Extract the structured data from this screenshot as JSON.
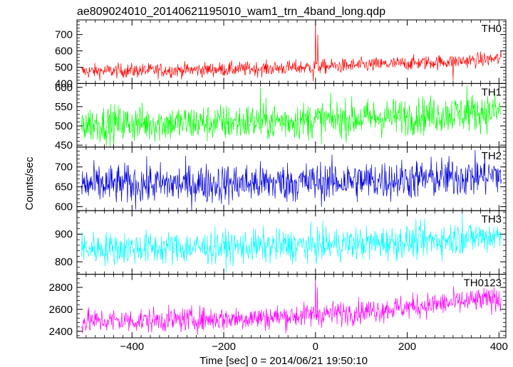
{
  "title": "ae809024010_20140621195010_wam1_trn_4band_long.qdp",
  "xlabel": "Time [sec] 0 = 2014/06/21 19:50:10",
  "ylabel": "Counts/sec",
  "chart_data": {
    "type": "line",
    "title": "ae809024010_20140621195010_wam1_trn_4band_long.qdp",
    "xlabel": "Time [sec] 0 = 2014/06/21 19:50:10",
    "ylabel": "Counts/sec",
    "xlim": [
      -520,
      415
    ],
    "xticks": [
      -400,
      -200,
      0,
      200,
      400
    ],
    "xtick_labels": [
      "−400",
      "−200",
      "0",
      "200",
      "400"
    ],
    "x_start": -510,
    "x_end": 405,
    "step": 1,
    "panels": [
      {
        "name": "TH0",
        "color": "#ff0000",
        "ylim": [
          400,
          790
        ],
        "yticks": [
          400,
          500,
          600,
          700
        ],
        "ytick_labels": [
          "400",
          "500",
          "600",
          "700"
        ],
        "baseline": [
          [
            -510,
            475
          ],
          [
            -300,
            482
          ],
          [
            -100,
            492
          ],
          [
            100,
            512
          ],
          [
            300,
            535
          ],
          [
            405,
            553
          ]
        ],
        "noise": 22,
        "spikes": [
          {
            "x": 0,
            "value": 790
          },
          {
            "x": 5,
            "value": 700
          },
          {
            "x": -5,
            "value": 415
          },
          {
            "x": 300,
            "value": 420
          }
        ]
      },
      {
        "name": "TH1",
        "color": "#00ff00",
        "ylim": [
          445,
          610
        ],
        "yticks": [
          450,
          500,
          550,
          600
        ],
        "ytick_labels": [
          "450",
          "500",
          "550",
          "600"
        ],
        "baseline": [
          [
            -510,
            505
          ],
          [
            -200,
            508
          ],
          [
            0,
            515
          ],
          [
            200,
            525
          ],
          [
            405,
            538
          ]
        ],
        "noise": 24,
        "spikes": [
          {
            "x": -120,
            "value": 600
          },
          {
            "x": 330,
            "value": 605
          }
        ]
      },
      {
        "name": "TH2",
        "color": "#0000dd",
        "ylim": [
          590,
          750
        ],
        "yticks": [
          600,
          650,
          700
        ],
        "ytick_labels": [
          "600",
          "650",
          "700"
        ],
        "baseline": [
          [
            -510,
            655
          ],
          [
            -200,
            658
          ],
          [
            0,
            662
          ],
          [
            200,
            668
          ],
          [
            405,
            680
          ]
        ],
        "noise": 25,
        "spikes": []
      },
      {
        "name": "TH3",
        "color": "#00ffff",
        "ylim": [
          755,
          985
        ],
        "yticks": [
          800,
          900
        ],
        "ytick_labels": [
          "800",
          "900"
        ],
        "baseline": [
          [
            -510,
            848
          ],
          [
            -200,
            852
          ],
          [
            0,
            860
          ],
          [
            200,
            872
          ],
          [
            405,
            895
          ]
        ],
        "noise": 30,
        "spikes": [
          {
            "x": 320,
            "value": 985
          }
        ]
      },
      {
        "name": "TH0123",
        "color": "#ff00ff",
        "ylim": [
          2340,
          2920
        ],
        "yticks": [
          2400,
          2600,
          2800
        ],
        "ytick_labels": [
          "2400",
          "2600",
          "2800"
        ],
        "baseline": [
          [
            -510,
            2490
          ],
          [
            -300,
            2505
          ],
          [
            -100,
            2525
          ],
          [
            100,
            2580
          ],
          [
            300,
            2660
          ],
          [
            405,
            2700
          ]
        ],
        "noise": 55,
        "spikes": [
          {
            "x": 0,
            "value": 2920
          },
          {
            "x": 4,
            "value": 2800
          }
        ]
      }
    ]
  }
}
